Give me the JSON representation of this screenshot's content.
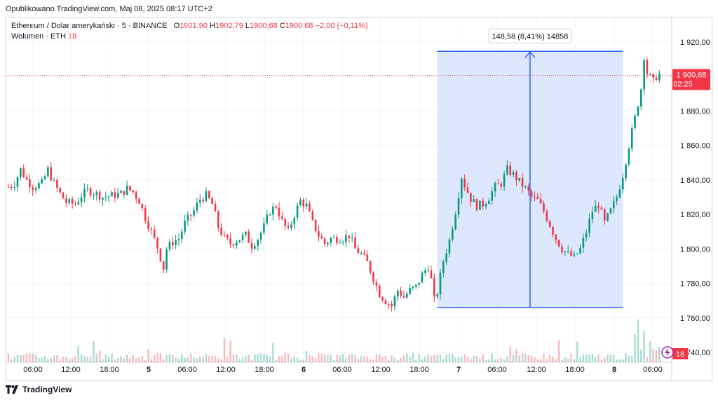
{
  "header": {
    "published": "Opublikowano TradingView.com, Maj 08, 2025 08:17 UTC+2"
  },
  "legend": {
    "symbol": "Ethereum / Dolar amerykański · 5 · BINANCE",
    "o_label": "O",
    "o_value": "1901,90",
    "h_label": "H",
    "h_value": "1902,79",
    "l_label": "L",
    "l_value": "1900,68",
    "c_label": "C",
    "c_value": "1900,68",
    "change": "−2,00 (−0,11%)",
    "volume_label": "Wolumen · ETH",
    "volume_value": "18"
  },
  "footer": {
    "brand": "TradingView",
    "logo_icon": "tradingview-logo-icon"
  },
  "chart_data": {
    "type": "candlestick",
    "y_axis": {
      "min": 1750,
      "max": 1930,
      "ticks": [
        "1 920,00",
        "1 900,00",
        "1 880,00",
        "1 860,00",
        "1 840,00",
        "1 820,00",
        "1 800,00",
        "1 780,00",
        "1 760,00",
        "1 740,00"
      ],
      "tick_values": [
        1920,
        1900,
        1880,
        1860,
        1840,
        1820,
        1800,
        1780,
        1760,
        1740
      ]
    },
    "x_axis": {
      "ticks": [
        "06:00",
        "12:00",
        "18:00",
        "5",
        "06:00",
        "12:00",
        "18:00",
        "6",
        "06:00",
        "12:00",
        "18:00",
        "7",
        "06:00",
        "12:00",
        "18:00",
        "8",
        "06:00"
      ],
      "bold": [
        false,
        false,
        false,
        true,
        false,
        false,
        false,
        true,
        false,
        false,
        false,
        true,
        false,
        false,
        false,
        true,
        false
      ]
    },
    "price_path": [
      [
        0,
        1836
      ],
      [
        2,
        1838
      ],
      [
        4,
        1846
      ],
      [
        6,
        1840
      ],
      [
        8,
        1836
      ],
      [
        11,
        1838
      ],
      [
        13,
        1846
      ],
      [
        15,
        1838
      ],
      [
        17,
        1832
      ],
      [
        19,
        1827
      ],
      [
        22,
        1826
      ],
      [
        24,
        1831
      ],
      [
        26,
        1834
      ],
      [
        29,
        1832
      ],
      [
        31,
        1830
      ],
      [
        34,
        1831
      ],
      [
        37,
        1832
      ],
      [
        39,
        1835
      ],
      [
        41,
        1833
      ],
      [
        43,
        1828
      ],
      [
        45,
        1818
      ],
      [
        47,
        1810
      ],
      [
        49,
        1801
      ],
      [
        51,
        1789
      ],
      [
        52,
        1800
      ],
      [
        54,
        1804
      ],
      [
        56,
        1806
      ],
      [
        58,
        1815
      ],
      [
        61,
        1822
      ],
      [
        63,
        1829
      ],
      [
        65,
        1831
      ],
      [
        67,
        1826
      ],
      [
        69,
        1813
      ],
      [
        71,
        1806
      ],
      [
        73,
        1803
      ],
      [
        76,
        1806
      ],
      [
        78,
        1808
      ],
      [
        80,
        1802
      ],
      [
        82,
        1806
      ],
      [
        84,
        1813
      ],
      [
        86,
        1822
      ],
      [
        88,
        1825
      ],
      [
        90,
        1816
      ],
      [
        92,
        1810
      ],
      [
        94,
        1820
      ],
      [
        96,
        1828
      ],
      [
        98,
        1825
      ],
      [
        100,
        1815
      ],
      [
        102,
        1808
      ],
      [
        104,
        1803
      ],
      [
        106,
        1806
      ],
      [
        108,
        1806
      ],
      [
        110,
        1806
      ],
      [
        112,
        1808
      ],
      [
        114,
        1800
      ],
      [
        116,
        1797
      ],
      [
        118,
        1792
      ],
      [
        120,
        1783
      ],
      [
        122,
        1774
      ],
      [
        124,
        1770
      ],
      [
        126,
        1767
      ],
      [
        128,
        1776
      ],
      [
        130,
        1772
      ],
      [
        132,
        1776
      ],
      [
        134,
        1778
      ],
      [
        136,
        1785
      ],
      [
        138,
        1790
      ],
      [
        139,
        1782
      ],
      [
        140,
        1770
      ],
      [
        141,
        1775
      ],
      [
        143,
        1793
      ],
      [
        145,
        1805
      ],
      [
        147,
        1822
      ],
      [
        149,
        1842
      ],
      [
        150,
        1837
      ],
      [
        152,
        1829
      ],
      [
        154,
        1825
      ],
      [
        156,
        1826
      ],
      [
        158,
        1830
      ],
      [
        160,
        1836
      ],
      [
        162,
        1838
      ],
      [
        164,
        1846
      ],
      [
        166,
        1843
      ],
      [
        168,
        1839
      ],
      [
        170,
        1835
      ],
      [
        172,
        1830
      ],
      [
        174,
        1828
      ],
      [
        176,
        1822
      ],
      [
        178,
        1814
      ],
      [
        180,
        1806
      ],
      [
        182,
        1800
      ],
      [
        184,
        1797
      ],
      [
        186,
        1795
      ],
      [
        188,
        1800
      ],
      [
        190,
        1810
      ],
      [
        192,
        1822
      ],
      [
        194,
        1826
      ],
      [
        196,
        1815
      ],
      [
        198,
        1822
      ],
      [
        200,
        1830
      ],
      [
        202,
        1843
      ],
      [
        204,
        1860
      ],
      [
        206,
        1876
      ],
      [
        208,
        1893
      ],
      [
        209,
        1912
      ],
      [
        210,
        1902
      ],
      [
        212,
        1897
      ],
      [
        213,
        1900
      ],
      [
        214,
        1901
      ]
    ],
    "measure_tool": {
      "label": "148,58 (8,41%) 14858",
      "from_price": 1766.0,
      "to_price": 1914.6,
      "from_bar": 141,
      "to_bar": 202
    },
    "last_price": {
      "value": "1 900,68",
      "countdown": "02:25",
      "price": 1900.68
    },
    "volume_last": "18",
    "colors": {
      "up": "#089981",
      "down": "#f23645",
      "measure_fill": "#d9e4fd",
      "measure_line": "#2962ff",
      "price_label_bg": "#f23645"
    }
  }
}
